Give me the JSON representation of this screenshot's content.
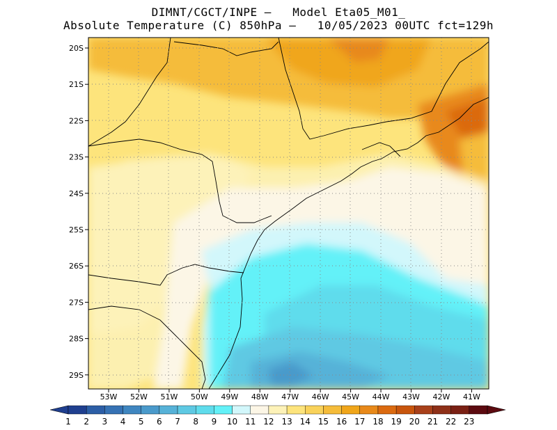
{
  "header": {
    "line1": "DIMNT/CGCT/INPE –   Model Eta05_M01_",
    "line2": "Absolute Temperature (C) 850hPa –   10/05/2023 00UTC fct=129h"
  },
  "axes": {
    "lat_labels": [
      "20S",
      "21S",
      "22S",
      "23S",
      "24S",
      "25S",
      "26S",
      "27S",
      "28S",
      "29S"
    ],
    "lon_labels": [
      "53W",
      "52W",
      "51W",
      "50W",
      "49W",
      "48W",
      "47W",
      "46W",
      "45W",
      "44W",
      "43W",
      "42W",
      "41W"
    ]
  },
  "colorbar": {
    "labels": [
      "1",
      "2",
      "3",
      "4",
      "5",
      "6",
      "7",
      "8",
      "9",
      "10",
      "11",
      "12",
      "13",
      "14",
      "15",
      "16",
      "17",
      "18",
      "19",
      "20",
      "21",
      "22",
      "23"
    ],
    "colors": [
      "#1f3f8f",
      "#2c5ea6",
      "#3672b4",
      "#3f86c0",
      "#4a9acb",
      "#56b2d8",
      "#5ec9e3",
      "#5fdcec",
      "#63f1f8",
      "#d2f7fb",
      "#fcf6e6",
      "#fdf2b8",
      "#fde47c",
      "#f9d25a",
      "#f5bc3a",
      "#f0a61a",
      "#e8891a",
      "#db6a10",
      "#c8550c",
      "#a8401a",
      "#8e3018",
      "#7a2014",
      "#5c0a10"
    ]
  },
  "map": {
    "lon_range": [
      -53.8,
      -40.4
    ],
    "lat_range": [
      -29.4,
      -19.8
    ],
    "grid": "dotted"
  }
}
